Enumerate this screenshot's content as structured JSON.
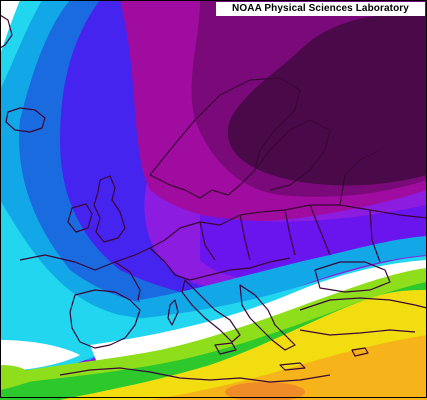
{
  "credit": {
    "text": "NOAA Physical Sciences Laboratory"
  },
  "palette": {
    "deep_purple": "#4a0a4a",
    "purple": "#7a0a7a",
    "magenta": "#a00ca0",
    "violet": "#8c1ce0",
    "indigo": "#6a14ee",
    "blue_violet": "#4624f0",
    "blue": "#1a6ae0",
    "sky_blue": "#12a8e8",
    "cyan": "#22d6f0",
    "white": "#ffffff",
    "lime": "#8ede1c",
    "green": "#2cc82c",
    "yellow": "#f2de10",
    "orange": "#f6b41a",
    "dark_orange": "#f08c28",
    "coastline": "#3a0636"
  }
}
